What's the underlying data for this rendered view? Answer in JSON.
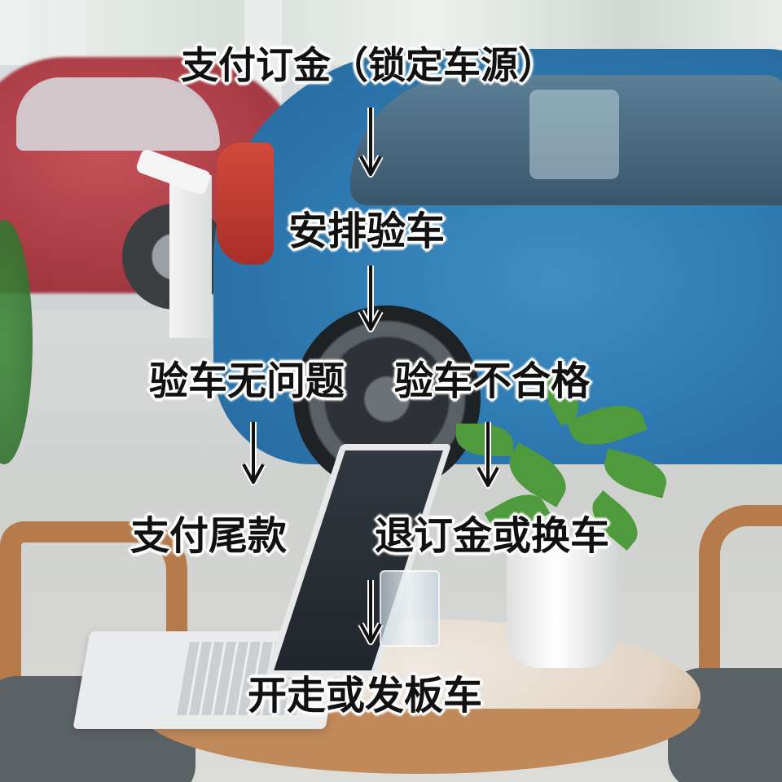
{
  "flowchart": {
    "nodes": {
      "pay_deposit": "支付订金（锁定车源）",
      "arrange_inspection": "安排验车",
      "inspection_ok": "验车无问题",
      "inspection_failed": "验车不合格",
      "pay_balance": "支付尾款",
      "refund_or_swap": "退订金或换车",
      "drive_or_ship": "开走或发板车"
    },
    "edges": [
      [
        "pay_deposit",
        "arrange_inspection"
      ],
      [
        "arrange_inspection",
        "inspection_ok"
      ],
      [
        "inspection_ok",
        "pay_balance"
      ],
      [
        "inspection_failed",
        "refund_or_swap"
      ],
      [
        "refund_or_swap",
        "drive_or_ship"
      ]
    ]
  },
  "colors": {
    "text": "#111111",
    "outline": "#ffffff",
    "arrow": "#111111"
  }
}
